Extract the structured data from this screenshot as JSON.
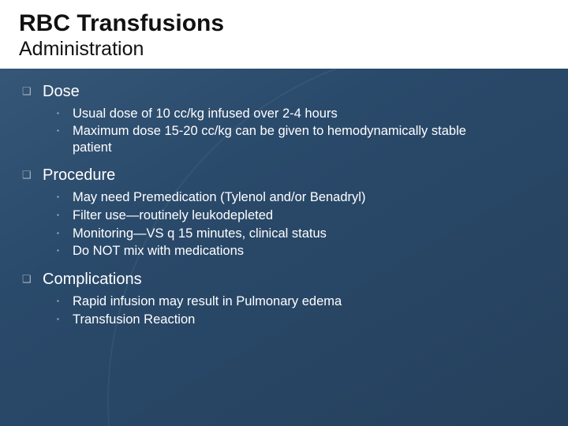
{
  "colors": {
    "background_top": "#395a7a",
    "background_mid": "#2a4a6b",
    "background_bottom": "#25405c",
    "title_block_bg": "#ffffff",
    "title_text": "#111111",
    "body_text": "#ffffff",
    "bullet_muted": "#a7b6c6"
  },
  "typography": {
    "title_fontsize_pt": 23,
    "subtitle_fontsize_pt": 19,
    "section_fontsize_pt": 15,
    "body_fontsize_pt": 12.5,
    "font_family": "Arial"
  },
  "header": {
    "title": "RBC Transfusions",
    "subtitle": "Administration"
  },
  "sections": [
    {
      "title": "Dose",
      "items": [
        "Usual dose of 10 cc/kg infused over 2-4 hours",
        "Maximum dose 15-20 cc/kg can be given to hemodynamically stable patient"
      ]
    },
    {
      "title": "Procedure",
      "items": [
        "May need Premedication (Tylenol and/or Benadryl)",
        "Filter use—routinely leukodepleted",
        "Monitoring—VS q 15 minutes, clinical status",
        "Do NOT mix with medications"
      ]
    },
    {
      "title": "Complications",
      "items": [
        "Rapid infusion may result in Pulmonary edema",
        "Transfusion Reaction"
      ]
    }
  ]
}
